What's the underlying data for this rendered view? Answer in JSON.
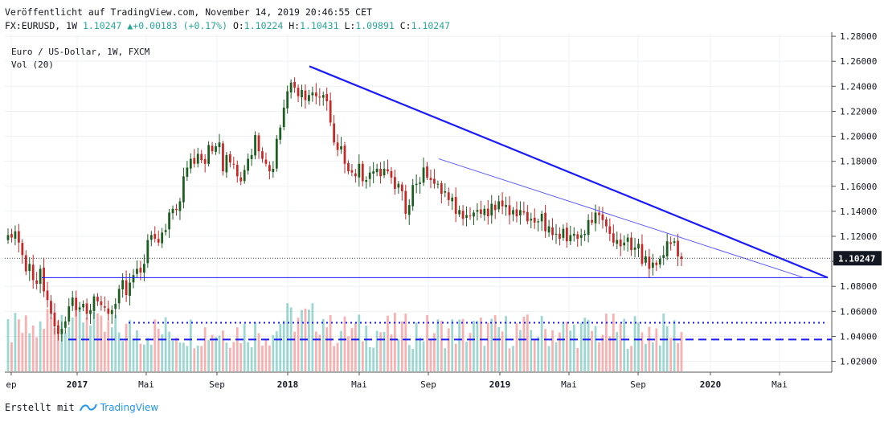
{
  "header": {
    "published": "Veröffentlicht auf TradingView.com, November 14, 2019 20:46:55 CET",
    "symbol_line": {
      "symbol": "FX:EURUSD, 1W",
      "last": "1.10247",
      "arrow": "▲",
      "change": "+0.00183 (+0.17%)",
      "o_label": "O:",
      "o_value": "1.10224",
      "h_label": "H:",
      "h_value": "1.10431",
      "l_label": "L:",
      "l_value": "1.09891",
      "c_label": "C:",
      "c_value": "1.10247"
    }
  },
  "legend": {
    "title": "Euro / US-Dollar, 1W, FXCM",
    "volume": "Vol (20)"
  },
  "footer": {
    "created_with": "Erstellt mit",
    "brand": "TradingView"
  },
  "colors": {
    "up": "#26a69a",
    "down": "#ef5350",
    "candle_up": "#1b5e20",
    "candle_down": "#c62828",
    "trendline": "#1a1aff",
    "price_tag_bg": "#131722",
    "grid": "#eef0f3"
  },
  "chart_data": {
    "type": "candlestick",
    "symbol": "EURUSD",
    "interval": "1W",
    "y_axis": {
      "range": [
        1.012,
        1.282
      ],
      "ticks": [
        "1.28000",
        "1.26000",
        "1.24000",
        "1.22000",
        "1.20000",
        "1.18000",
        "1.16000",
        "1.14000",
        "1.12000",
        "1.10000",
        "1.08000",
        "1.06000",
        "1.04000",
        "1.02000"
      ]
    },
    "x_axis": {
      "labels": [
        "ep",
        "2017",
        "Mai",
        "Sep",
        "2018",
        "Mai",
        "Sep",
        "2019",
        "Mai",
        "Sep",
        "2020",
        "Mai"
      ],
      "major": [
        "2017",
        "2018",
        "2019",
        "2020"
      ]
    },
    "last_price": "1.10247",
    "series_close": [
      1.121,
      1.119,
      1.124,
      1.115,
      1.105,
      1.092,
      1.098,
      1.085,
      1.082,
      1.094,
      1.076,
      1.069,
      1.058,
      1.048,
      1.042,
      1.046,
      1.052,
      1.064,
      1.071,
      1.061,
      1.063,
      1.066,
      1.058,
      1.061,
      1.072,
      1.068,
      1.065,
      1.063,
      1.058,
      1.061,
      1.066,
      1.078,
      1.085,
      1.073,
      1.083,
      1.089,
      1.094,
      1.091,
      1.098,
      1.117,
      1.121,
      1.118,
      1.115,
      1.123,
      1.125,
      1.139,
      1.142,
      1.141,
      1.148,
      1.168,
      1.175,
      1.182,
      1.178,
      1.186,
      1.181,
      1.178,
      1.193,
      1.188,
      1.192,
      1.195,
      1.172,
      1.185,
      1.179,
      1.178,
      1.168,
      1.164,
      1.173,
      1.182,
      1.185,
      1.201,
      1.188,
      1.182,
      1.178,
      1.172,
      1.174,
      1.198,
      1.207,
      1.223,
      1.236,
      1.243,
      1.239,
      1.232,
      1.237,
      1.229,
      1.233,
      1.235,
      1.232,
      1.231,
      1.233,
      1.228,
      1.211,
      1.195,
      1.189,
      1.192,
      1.178,
      1.172,
      1.171,
      1.168,
      1.178,
      1.164,
      1.165,
      1.171,
      1.172,
      1.174,
      1.168,
      1.174,
      1.172,
      1.167,
      1.158,
      1.162,
      1.156,
      1.138,
      1.145,
      1.161,
      1.162,
      1.163,
      1.175,
      1.167,
      1.165,
      1.162,
      1.162,
      1.154,
      1.156,
      1.149,
      1.151,
      1.138,
      1.141,
      1.134,
      1.137,
      1.136,
      1.139,
      1.141,
      1.138,
      1.142,
      1.136,
      1.146,
      1.141,
      1.148,
      1.144,
      1.145,
      1.137,
      1.141,
      1.136,
      1.141,
      1.139,
      1.132,
      1.134,
      1.131,
      1.132,
      1.138,
      1.124,
      1.128,
      1.121,
      1.122,
      1.118,
      1.126,
      1.116,
      1.121,
      1.122,
      1.118,
      1.121,
      1.122,
      1.133,
      1.131,
      1.139,
      1.137,
      1.133,
      1.128,
      1.122,
      1.115,
      1.117,
      1.112,
      1.115,
      1.119,
      1.109,
      1.111,
      1.114,
      1.098,
      1.104,
      1.094,
      1.099,
      1.097,
      1.102,
      1.105,
      1.116,
      1.114,
      1.116,
      1.104,
      1.102
    ],
    "volume_levels": {
      "dotted": 0.55,
      "dashed": 0.36
    },
    "drawings": [
      {
        "type": "trendline",
        "from": "2018-02",
        "to": "2020-07",
        "note": "upper descending"
      },
      {
        "type": "trendline",
        "from": "2018-09",
        "to": "2020-06",
        "note": "lower descending"
      },
      {
        "type": "horizontal",
        "level": 1.087
      }
    ]
  }
}
